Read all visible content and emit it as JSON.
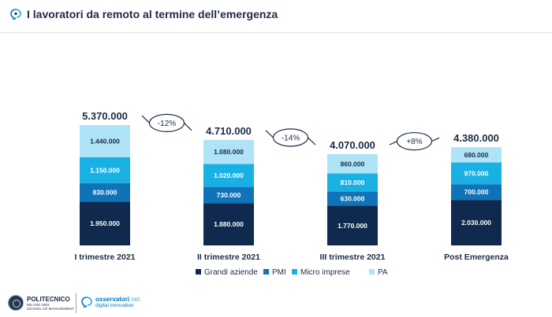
{
  "header": {
    "title": "I lavoratori da remoto al termine dell’emergenza"
  },
  "chart_data": {
    "type": "bar",
    "stacked": true,
    "categories": [
      "I trimestre 2021",
      "II trimestre 2021",
      "III trimestre 2021",
      "Post Emergenza"
    ],
    "series": [
      {
        "name": "Grandi aziende",
        "color": "#0f2a4e",
        "values": [
          1950000,
          1880000,
          1770000,
          2030000
        ],
        "labels": [
          "1.950.000",
          "1.880.000",
          "1.770.000",
          "2.030.000"
        ]
      },
      {
        "name": "PMI",
        "color": "#0f73b8",
        "values": [
          830000,
          730000,
          630000,
          700000
        ],
        "labels": [
          "830.000",
          "730.000",
          "630.000",
          "700.000"
        ]
      },
      {
        "name": "Micro imprese",
        "color": "#19b0e4",
        "values": [
          1150000,
          1020000,
          810000,
          970000
        ],
        "labels": [
          "1.150.000",
          "1.020.000",
          "810.000",
          "970.000"
        ]
      },
      {
        "name": "PA",
        "color": "#aee3f8",
        "values": [
          1440000,
          1080000,
          860000,
          680000
        ],
        "labels": [
          "1.440.000",
          "1.080.000",
          "860.000",
          "680.000"
        ]
      }
    ],
    "totals": [
      5370000,
      4710000,
      4070000,
      4380000
    ],
    "total_labels": [
      "5.370.000",
      "4.710.000",
      "4.070.000",
      "4.380.000"
    ],
    "changes": [
      "-12%",
      "-14%",
      "+8%"
    ],
    "legend_position": "bottom",
    "grid": false
  },
  "footer": {
    "polimi_name": "POLITECNICO",
    "polimi_sub1": "MILANO 1863",
    "polimi_sub2": "SCHOOL OF MANAGEMENT",
    "oss_name": "osservatori",
    "oss_tld": ".net",
    "oss_sub": "digital innovation"
  },
  "icons": {
    "header": "brain-icon",
    "footer_seal": "university-seal-icon",
    "footer_oss": "brain-icon"
  }
}
